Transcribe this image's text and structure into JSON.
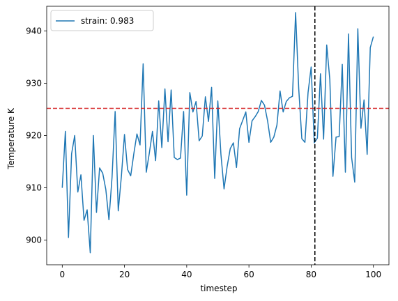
{
  "chart_data": {
    "type": "line",
    "xlabel": "timestep",
    "ylabel": "Temperature K",
    "xlim": [
      -5,
      105
    ],
    "ylim": [
      895.3,
      944.7
    ],
    "xticks": [
      0,
      20,
      40,
      60,
      80,
      100
    ],
    "yticks": [
      900,
      910,
      920,
      930,
      940
    ],
    "legend_position": "top-left",
    "grid": false,
    "series": [
      {
        "name": "strain: 0.983",
        "color": "#1f77b4",
        "x": [
          0,
          1,
          2,
          3,
          4,
          5,
          6,
          7,
          8,
          9,
          10,
          11,
          12,
          13,
          14,
          15,
          16,
          17,
          18,
          19,
          20,
          21,
          22,
          23,
          24,
          25,
          26,
          27,
          28,
          29,
          30,
          31,
          32,
          33,
          34,
          35,
          36,
          37,
          38,
          39,
          40,
          41,
          42,
          43,
          44,
          45,
          46,
          47,
          48,
          49,
          50,
          51,
          52,
          53,
          54,
          55,
          56,
          57,
          58,
          59,
          60,
          61,
          62,
          63,
          64,
          65,
          66,
          67,
          68,
          69,
          70,
          71,
          72,
          73,
          74,
          75,
          76,
          77,
          78,
          79,
          80,
          81,
          82,
          83,
          84,
          85,
          86,
          87,
          88,
          89,
          90,
          91,
          92,
          93,
          94,
          95,
          96,
          97,
          98,
          99,
          100
        ],
        "values": [
          910.0,
          920.8,
          900.5,
          916.5,
          920.0,
          909.2,
          912.5,
          903.8,
          905.8,
          897.6,
          920.0,
          905.3,
          913.8,
          912.8,
          909.7,
          903.9,
          912.0,
          924.6,
          905.6,
          912.2,
          920.2,
          913.5,
          912.3,
          916.5,
          920.3,
          918.2,
          933.7,
          913.0,
          916.7,
          920.8,
          915.2,
          926.6,
          917.7,
          928.9,
          918.8,
          928.7,
          915.8,
          915.4,
          915.7,
          924.6,
          908.6,
          928.2,
          924.5,
          926.5,
          919.0,
          919.9,
          927.4,
          922.7,
          929.2,
          911.8,
          926.6,
          916.4,
          909.8,
          914.1,
          917.5,
          918.6,
          913.9,
          921.3,
          922.9,
          924.5,
          918.7,
          922.8,
          923.6,
          924.6,
          926.7,
          925.8,
          922.8,
          918.7,
          919.7,
          922.0,
          928.5,
          924.5,
          926.5,
          927.2,
          927.5,
          943.5,
          929.0,
          919.4,
          918.7,
          928.2,
          933.1,
          918.6,
          919.5,
          931.8,
          919.3,
          937.3,
          930.7,
          912.2,
          919.7,
          919.8,
          933.6,
          913.0,
          939.4,
          915.8,
          911.1,
          940.4,
          921.4,
          926.8,
          916.4,
          936.8,
          938.9
        ]
      }
    ],
    "hlines": [
      {
        "value": 925.2,
        "color": "#d62728",
        "style": "dashed"
      }
    ],
    "vlines": [
      {
        "value": 81.2,
        "color": "#000000",
        "style": "dashed"
      }
    ]
  }
}
